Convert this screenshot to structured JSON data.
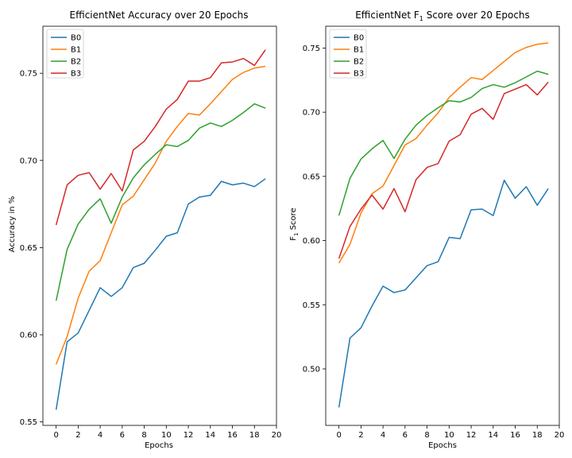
{
  "chart_data": [
    {
      "type": "line",
      "title": "EfficientNet Accuracy over 20 Epochs",
      "xlabel": "Epochs",
      "ylabel": "Accuracy in %",
      "xlim": [
        -1.2,
        20
      ],
      "ylim": [
        0.548,
        0.777
      ],
      "xticks": [
        0,
        2,
        4,
        6,
        8,
        10,
        12,
        14,
        16,
        18,
        20
      ],
      "yticks": [
        0.55,
        0.6,
        0.65,
        0.7,
        0.75
      ],
      "ytick_labels": [
        "0.55",
        "0.60",
        "0.65",
        "0.70",
        "0.75"
      ],
      "legend": "top-left",
      "grid": false,
      "x": [
        0,
        1,
        2,
        3,
        4,
        5,
        6,
        7,
        8,
        9,
        10,
        11,
        12,
        13,
        14,
        15,
        16,
        17,
        18,
        19
      ],
      "series": [
        {
          "name": "B0",
          "color": "#1f77b4",
          "values": [
            0.557,
            0.596,
            0.601,
            0.614,
            0.627,
            0.622,
            0.627,
            0.6385,
            0.641,
            0.6485,
            0.6565,
            0.6585,
            0.675,
            0.679,
            0.68,
            0.688,
            0.686,
            0.687,
            0.685,
            0.6895
          ]
        },
        {
          "name": "B1",
          "color": "#ff7f0e",
          "values": [
            0.583,
            0.599,
            0.621,
            0.6365,
            0.6425,
            0.6585,
            0.6745,
            0.6795,
            0.689,
            0.6985,
            0.711,
            0.7195,
            0.727,
            0.726,
            0.7325,
            0.7395,
            0.7465,
            0.7505,
            0.753,
            0.754
          ]
        },
        {
          "name": "B2",
          "color": "#2ca02c",
          "values": [
            0.6195,
            0.649,
            0.6635,
            0.672,
            0.678,
            0.664,
            0.679,
            0.69,
            0.6975,
            0.7035,
            0.709,
            0.708,
            0.7115,
            0.7185,
            0.7215,
            0.7195,
            0.723,
            0.7275,
            0.7325,
            0.73
          ]
        },
        {
          "name": "B3",
          "color": "#d62728",
          "values": [
            0.663,
            0.686,
            0.6915,
            0.693,
            0.6835,
            0.6925,
            0.6825,
            0.706,
            0.711,
            0.7195,
            0.7295,
            0.735,
            0.7455,
            0.7455,
            0.7475,
            0.756,
            0.7565,
            0.7585,
            0.7545,
            0.7635
          ]
        }
      ]
    },
    {
      "type": "line",
      "title_parts": {
        "pre": "EfficientNet F",
        "sub": "1",
        "post": " Score over 20 Epochs"
      },
      "xlabel": "Epochs",
      "ylabel_parts": {
        "pre": "F",
        "sub": "1",
        "post": " Score"
      },
      "xlim": [
        -1.2,
        20
      ],
      "ylim": [
        0.456,
        0.767
      ],
      "xticks": [
        0,
        2,
        4,
        6,
        8,
        10,
        12,
        14,
        16,
        18,
        20
      ],
      "yticks": [
        0.5,
        0.55,
        0.6,
        0.65,
        0.7,
        0.75
      ],
      "ytick_labels": [
        "0.50",
        "0.55",
        "0.60",
        "0.65",
        "0.70",
        "0.75"
      ],
      "legend": "top-left",
      "grid": false,
      "x": [
        0,
        1,
        2,
        3,
        4,
        5,
        6,
        7,
        8,
        9,
        10,
        11,
        12,
        13,
        14,
        15,
        16,
        17,
        18,
        19
      ],
      "series": [
        {
          "name": "B0",
          "color": "#1f77b4",
          "values": [
            0.47,
            0.524,
            0.532,
            0.549,
            0.5645,
            0.5595,
            0.5615,
            0.571,
            0.5805,
            0.5835,
            0.6025,
            0.6015,
            0.624,
            0.6245,
            0.6195,
            0.647,
            0.633,
            0.642,
            0.6275,
            0.6405
          ]
        },
        {
          "name": "B1",
          "color": "#ff7f0e",
          "values": [
            0.5825,
            0.597,
            0.6215,
            0.6365,
            0.6425,
            0.6585,
            0.6745,
            0.6795,
            0.69,
            0.6995,
            0.7115,
            0.7195,
            0.727,
            0.7255,
            0.7325,
            0.7395,
            0.7465,
            0.7505,
            0.753,
            0.754
          ]
        },
        {
          "name": "B2",
          "color": "#2ca02c",
          "values": [
            0.6195,
            0.6485,
            0.6635,
            0.6715,
            0.678,
            0.664,
            0.679,
            0.69,
            0.6975,
            0.7035,
            0.709,
            0.708,
            0.7115,
            0.7185,
            0.7215,
            0.7195,
            0.723,
            0.7275,
            0.732,
            0.7295
          ]
        },
        {
          "name": "B3",
          "color": "#d62728",
          "values": [
            0.586,
            0.611,
            0.6245,
            0.6355,
            0.6245,
            0.6405,
            0.6225,
            0.6475,
            0.657,
            0.66,
            0.6775,
            0.6825,
            0.6985,
            0.703,
            0.6945,
            0.7145,
            0.718,
            0.7215,
            0.7135,
            0.7235
          ]
        }
      ]
    }
  ]
}
